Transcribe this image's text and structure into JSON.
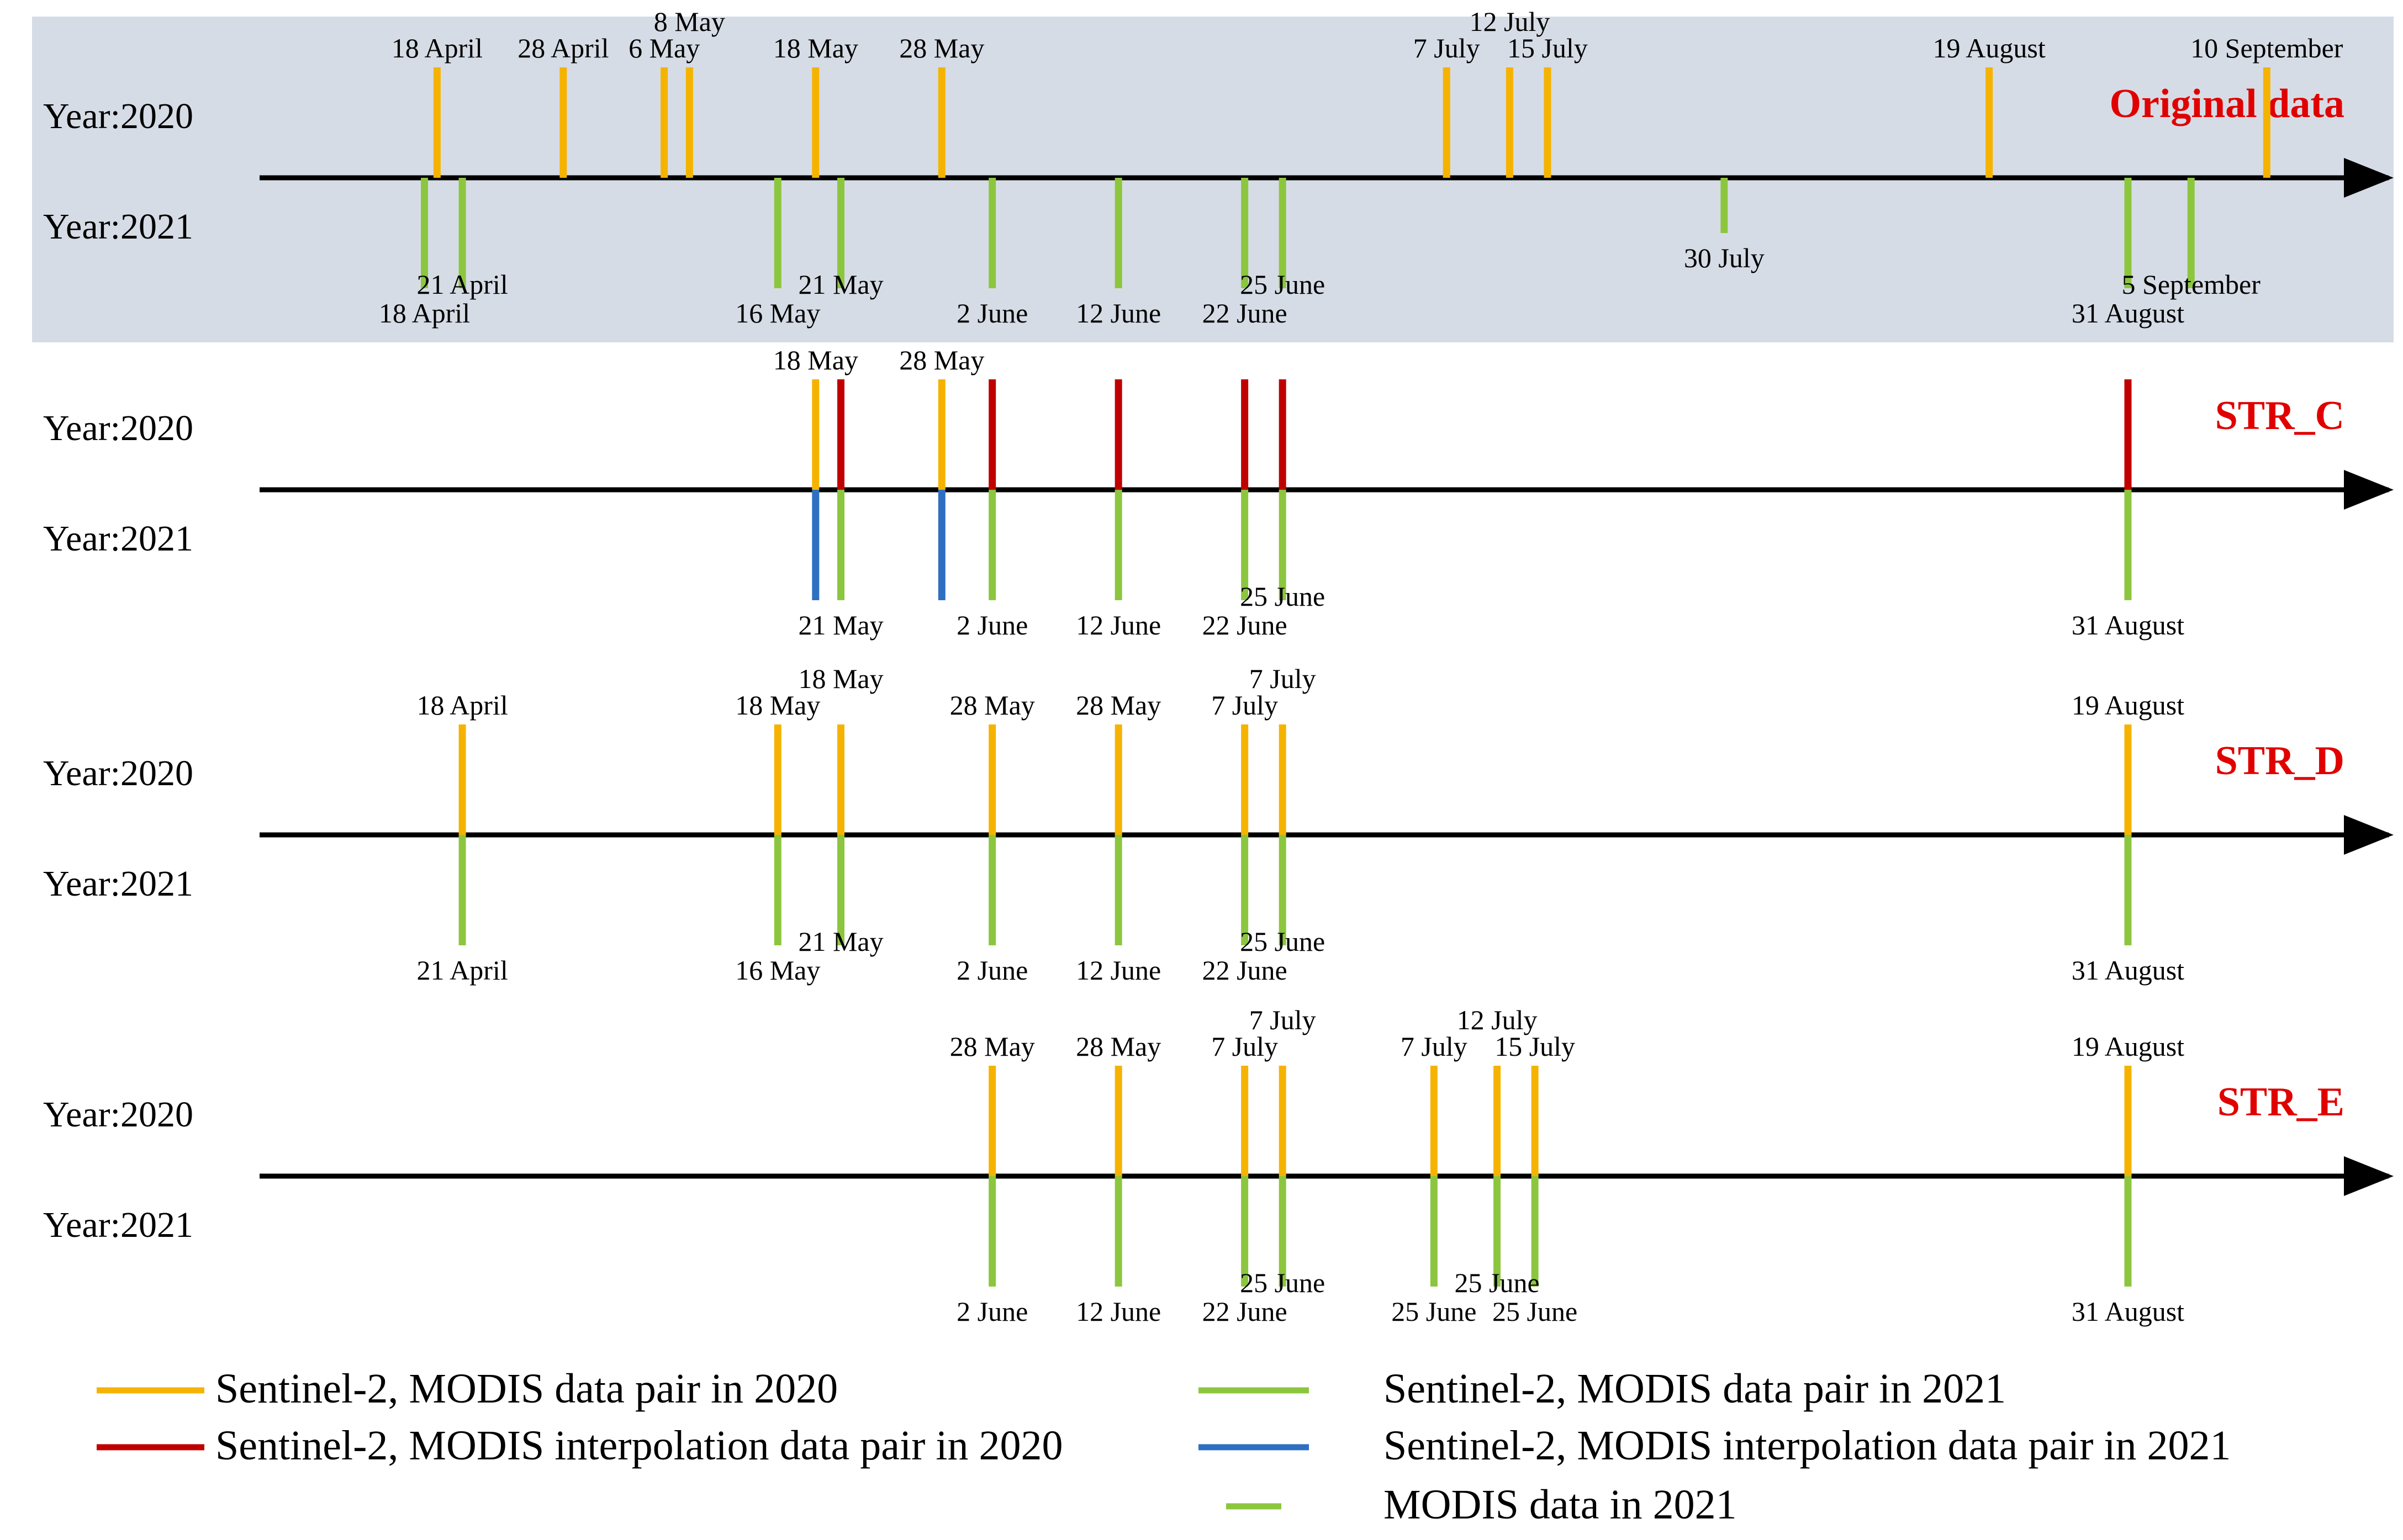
{
  "colors": {
    "pair_2020": "#f5b300",
    "pair_2021": "#8cc63f",
    "interp_2020": "#c00000",
    "interp_2021": "#2e6fc2",
    "modis_2021": "#8cc63f",
    "title": "#e00000",
    "axis": "#000000",
    "panel_bg": "#d6dce5"
  },
  "chart_data": {
    "type": "timeline",
    "x_unit": "day of year",
    "x_range": [
      105,
      256
    ],
    "panels": [
      {
        "id": "original",
        "title": "Original data",
        "label_2020": "Year:2020",
        "label_2021": "Year:2021",
        "upper": [
          {
            "label": "18 April",
            "day": 109,
            "kind": "pair_2020"
          },
          {
            "label": "28 April",
            "day": 119,
            "kind": "pair_2020"
          },
          {
            "label": "6 May",
            "day": 127,
            "kind": "pair_2020"
          },
          {
            "label": "8 May",
            "day": 129,
            "kind": "pair_2020"
          },
          {
            "label": "18 May",
            "day": 139,
            "kind": "pair_2020"
          },
          {
            "label": "28 May",
            "day": 149,
            "kind": "pair_2020"
          },
          {
            "label": "7 July",
            "day": 189,
            "kind": "pair_2020"
          },
          {
            "label": "12 July",
            "day": 194,
            "kind": "pair_2020"
          },
          {
            "label": "15 July",
            "day": 197,
            "kind": "pair_2020"
          },
          {
            "label": "19 August",
            "day": 232,
            "kind": "pair_2020"
          },
          {
            "label": "10 September",
            "day": 254,
            "kind": "pair_2020"
          }
        ],
        "lower": [
          {
            "label": "18 April",
            "day": 108,
            "kind": "pair_2021"
          },
          {
            "label": "21 April",
            "day": 111,
            "kind": "pair_2021"
          },
          {
            "label": "16 May",
            "day": 136,
            "kind": "pair_2021"
          },
          {
            "label": "21 May",
            "day": 141,
            "kind": "pair_2021"
          },
          {
            "label": "2 June",
            "day": 153,
            "kind": "pair_2021"
          },
          {
            "label": "12 June",
            "day": 163,
            "kind": "pair_2021"
          },
          {
            "label": "22 June",
            "day": 173,
            "kind": "pair_2021"
          },
          {
            "label": "25 June",
            "day": 176,
            "kind": "pair_2021"
          },
          {
            "label": "30 July",
            "day": 211,
            "kind": "modis_2021"
          },
          {
            "label": "31 August",
            "day": 243,
            "kind": "pair_2021"
          },
          {
            "label": "5 September",
            "day": 248,
            "kind": "pair_2021"
          }
        ]
      },
      {
        "id": "str_c",
        "title": "STR_C",
        "label_2020": "Year:2020",
        "label_2021": "Year:2021",
        "upper": [
          {
            "label": "18 May",
            "day": 139,
            "kind": "pair_2020"
          },
          {
            "label": "",
            "day": 141,
            "kind": "interp_2020"
          },
          {
            "label": "28 May",
            "day": 149,
            "kind": "pair_2020"
          },
          {
            "label": "",
            "day": 153,
            "kind": "interp_2020"
          },
          {
            "label": "",
            "day": 163,
            "kind": "interp_2020"
          },
          {
            "label": "",
            "day": 173,
            "kind": "interp_2020"
          },
          {
            "label": "",
            "day": 176,
            "kind": "interp_2020"
          },
          {
            "label": "",
            "day": 243,
            "kind": "interp_2020"
          }
        ],
        "lower": [
          {
            "label": "",
            "day": 139,
            "kind": "interp_2021"
          },
          {
            "label": "21 May",
            "day": 141,
            "kind": "pair_2021"
          },
          {
            "label": "",
            "day": 149,
            "kind": "interp_2021"
          },
          {
            "label": "2 June",
            "day": 153,
            "kind": "pair_2021"
          },
          {
            "label": "12 June",
            "day": 163,
            "kind": "pair_2021"
          },
          {
            "label": "22 June",
            "day": 173,
            "kind": "pair_2021"
          },
          {
            "label": "25 June",
            "day": 176,
            "kind": "pair_2021"
          },
          {
            "label": "31 August",
            "day": 243,
            "kind": "pair_2021"
          }
        ]
      },
      {
        "id": "str_d",
        "title": "STR_D",
        "label_2020": "Year:2020",
        "label_2021": "Year:2021",
        "upper": [
          {
            "label": "18 April",
            "day": 111,
            "kind": "pair_2020"
          },
          {
            "label": "18 May",
            "day": 136,
            "kind": "pair_2020"
          },
          {
            "label": "18 May",
            "day": 141,
            "kind": "pair_2020"
          },
          {
            "label": "28 May",
            "day": 153,
            "kind": "pair_2020"
          },
          {
            "label": "28 May",
            "day": 163,
            "kind": "pair_2020"
          },
          {
            "label": "7 July",
            "day": 173,
            "kind": "pair_2020"
          },
          {
            "label": "7 July",
            "day": 176,
            "kind": "pair_2020"
          },
          {
            "label": "19 August",
            "day": 243,
            "kind": "pair_2020"
          }
        ],
        "lower": [
          {
            "label": "21 April",
            "day": 111,
            "kind": "pair_2021"
          },
          {
            "label": "16 May",
            "day": 136,
            "kind": "pair_2021"
          },
          {
            "label": "21 May",
            "day": 141,
            "kind": "pair_2021"
          },
          {
            "label": "2 June",
            "day": 153,
            "kind": "pair_2021"
          },
          {
            "label": "12 June",
            "day": 163,
            "kind": "pair_2021"
          },
          {
            "label": "22 June",
            "day": 173,
            "kind": "pair_2021"
          },
          {
            "label": "25 June",
            "day": 176,
            "kind": "pair_2021"
          },
          {
            "label": "31 August",
            "day": 243,
            "kind": "pair_2021"
          }
        ]
      },
      {
        "id": "str_e",
        "title": "STR_E",
        "label_2020": "Year:2020",
        "label_2021": "Year:2021",
        "upper": [
          {
            "label": "28 May",
            "day": 153,
            "kind": "pair_2020"
          },
          {
            "label": "28 May",
            "day": 163,
            "kind": "pair_2020"
          },
          {
            "label": "7 July",
            "day": 173,
            "kind": "pair_2020"
          },
          {
            "label": "7 July",
            "day": 176,
            "kind": "pair_2020"
          },
          {
            "label": "7 July",
            "day": 188,
            "kind": "pair_2020"
          },
          {
            "label": "12 July",
            "day": 193,
            "kind": "pair_2020"
          },
          {
            "label": "15 July",
            "day": 196,
            "kind": "pair_2020"
          },
          {
            "label": "19 August",
            "day": 243,
            "kind": "pair_2020"
          }
        ],
        "lower": [
          {
            "label": "2 June",
            "day": 153,
            "kind": "pair_2021"
          },
          {
            "label": "12 June",
            "day": 163,
            "kind": "pair_2021"
          },
          {
            "label": "22 June",
            "day": 173,
            "kind": "pair_2021"
          },
          {
            "label": "25 June",
            "day": 176,
            "kind": "pair_2021"
          },
          {
            "label": "25 June",
            "day": 188,
            "kind": "pair_2021"
          },
          {
            "label": "25 June",
            "day": 193,
            "kind": "pair_2021"
          },
          {
            "label": "25 June",
            "day": 196,
            "kind": "pair_2021"
          },
          {
            "label": "31 August",
            "day": 243,
            "kind": "pair_2021"
          }
        ]
      }
    ]
  },
  "legend": [
    {
      "key": "pair_2020",
      "label": "Sentinel-2, MODIS data pair in 2020"
    },
    {
      "key": "interp_2020",
      "label": "Sentinel-2, MODIS interpolation data pair in 2020"
    },
    {
      "key": "pair_2021",
      "label": "Sentinel-2, MODIS data pair in 2021"
    },
    {
      "key": "interp_2021",
      "label": "Sentinel-2, MODIS interpolation data pair in 2021"
    },
    {
      "key": "modis_2021",
      "label": "MODIS data in 2021"
    }
  ]
}
